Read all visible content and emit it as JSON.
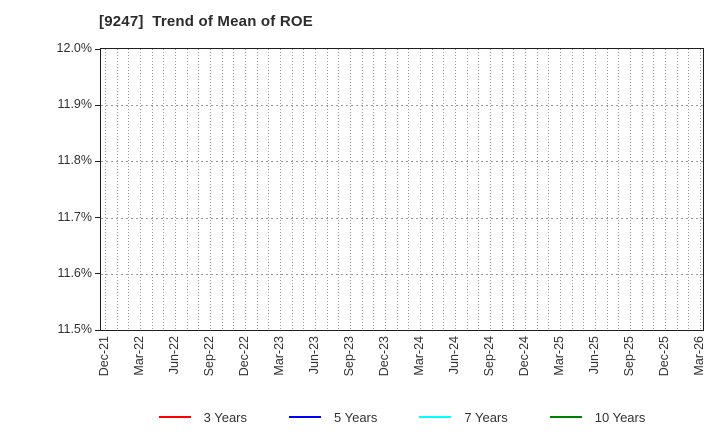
{
  "chart_data": {
    "type": "line",
    "title": "[9247]  Trend of Mean of ROE",
    "xlabel": "",
    "ylabel": "",
    "x_categories": [
      "Dec-21",
      "Mar-22",
      "Jun-22",
      "Sep-22",
      "Dec-22",
      "Mar-23",
      "Jun-23",
      "Sep-23",
      "Dec-23",
      "Mar-24",
      "Jun-24",
      "Sep-24",
      "Dec-24",
      "Mar-25",
      "Jun-25",
      "Sep-25",
      "Dec-25",
      "Mar-26"
    ],
    "x_minor_grid": "monthly",
    "y_ticks": [
      "11.5%",
      "11.6%",
      "11.7%",
      "11.8%",
      "11.9%",
      "12.0%"
    ],
    "ylim": [
      11.5,
      12.0
    ],
    "y_tick_step": 0.1,
    "grid": true,
    "legend_position": "bottom",
    "series": [
      {
        "name": "3 Years",
        "color": "#ff0000",
        "values": []
      },
      {
        "name": "5 Years",
        "color": "#0000ff",
        "values": []
      },
      {
        "name": "7 Years",
        "color": "#00ffff",
        "values": []
      },
      {
        "name": "10 Years",
        "color": "#008000",
        "values": []
      }
    ],
    "colors": {
      "background": "#ffffff",
      "plot_border": "#1f1f1f",
      "gridline": "#999999",
      "title_text": "#2b2b2b",
      "tick_text": "#333333"
    }
  }
}
